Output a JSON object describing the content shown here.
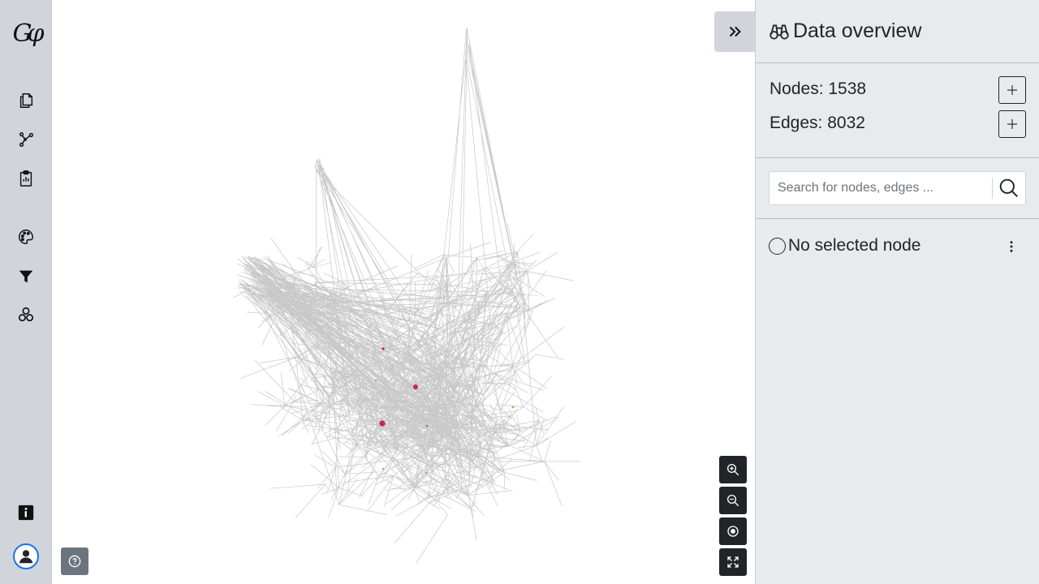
{
  "app": {
    "logo_text": "Gφ"
  },
  "toolbar": {
    "tools": [
      {
        "name": "files-icon"
      },
      {
        "name": "graph-icon"
      },
      {
        "name": "clipboard-icon"
      },
      {
        "name": "palette-icon"
      },
      {
        "name": "filter-icon"
      },
      {
        "name": "cluster-icon"
      },
      {
        "name": "info-icon"
      }
    ]
  },
  "panel": {
    "title": "Data overview",
    "nodes_label": "Nodes: 1538",
    "edges_label": "Edges: 8032",
    "search_placeholder": "Search for nodes, edges ...",
    "selected_label": "No selected node"
  },
  "graph": {
    "node_count": 1538,
    "edge_count": 8032,
    "edge_color": "#c8c8c8",
    "highlight_color": "#c2255c"
  },
  "colors": {
    "sidebar_bg": "#d1d5db",
    "panel_bg": "#e8ebee",
    "button_dark": "#212529"
  }
}
